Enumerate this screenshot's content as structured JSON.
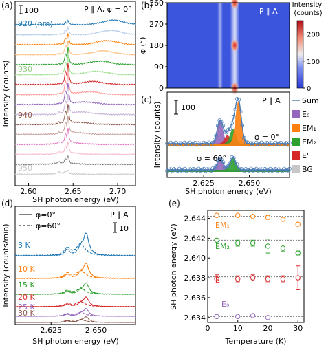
{
  "panel_labels": [
    "(a)",
    "(b)",
    "(c)",
    "(d)",
    "(e)"
  ],
  "chart_data": [
    {
      "panel": "a",
      "type": "line",
      "annotation": "P ∥ A, φ = 0°",
      "scale_bar": "100",
      "xlabel": "SH photon energy (eV)",
      "ylabel": "Intensity (counts)",
      "xlim": [
        2.585,
        2.72
      ],
      "xticks": [
        "2.60",
        "2.65",
        "2.70"
      ],
      "wavelength_unit_label": "920 (nm)",
      "wavelength_labels": [
        {
          "text": "920 (nm)",
          "color": "#1f77b4"
        },
        {
          "text": "930",
          "color": "#8fd07f"
        },
        {
          "text": "940",
          "color": "#8c564b"
        },
        {
          "text": "950",
          "color": "#c7c7c7"
        }
      ],
      "series": [
        {
          "color": "#1f77b4",
          "peak_x": 2.695
        },
        {
          "color": "#aec7e8",
          "peak_x": 2.692
        },
        {
          "color": "#ff7f0e",
          "peak_x": 2.688
        },
        {
          "color": "#ffbb78",
          "peak_x": 2.684
        },
        {
          "color": "#2ca02c",
          "peak_x": 2.68
        },
        {
          "color": "#98df8a",
          "peak_x": 2.676
        },
        {
          "color": "#d62728",
          "peak_x": 2.672
        },
        {
          "color": "#ff9896",
          "peak_x": 2.668
        },
        {
          "color": "#9467bd",
          "peak_x": 2.664
        },
        {
          "color": "#c5b0d5",
          "peak_x": 2.66
        },
        {
          "color": "#8c564b",
          "peak_x": 2.656
        },
        {
          "color": "#c49c94",
          "peak_x": 2.652
        },
        {
          "color": "#e377c2",
          "peak_x": 2.648
        },
        {
          "color": "#f7b6d2",
          "peak_x": 2.644
        },
        {
          "color": "#7f7f7f",
          "peak_x": 2.64
        },
        {
          "color": "#c7c7c7",
          "peak_x": 2.636
        }
      ]
    },
    {
      "panel": "b",
      "type": "heatmap",
      "annotation": "P ∥ A",
      "ylabel": "φ (°)",
      "ylim": [
        0,
        360
      ],
      "yticks": [
        "0",
        "90",
        "180",
        "270",
        "360"
      ],
      "colorbar_label": "Intensity (counts)",
      "colorbar_range": [
        0,
        250
      ],
      "colorbar_ticks": [
        "0",
        "100",
        "200"
      ],
      "bands": [
        {
          "x": 2.634,
          "strength": "weak"
        },
        {
          "x": 2.642,
          "strength": "strong"
        }
      ],
      "hot_spots": [
        {
          "x": 2.642,
          "phi": 0
        },
        {
          "x": 2.642,
          "phi": 180
        },
        {
          "x": 2.642,
          "phi": 360
        }
      ]
    },
    {
      "panel": "c",
      "type": "line",
      "annotation": "P ∥ A",
      "scale_bar": "100",
      "xlabel": "SH photon energy (eV)",
      "ylabel": "Intensity (counts)",
      "xlim": [
        2.605,
        2.672
      ],
      "xticks": [
        "2.625",
        "2.650"
      ],
      "curve_labels": [
        "φ = 0°",
        "φ = 60°"
      ],
      "legend": [
        {
          "name": "Sum",
          "color": "#4a7bb7"
        },
        {
          "name": "E₀",
          "color": "#9467bd"
        },
        {
          "name": "EM₁",
          "color": "#ff7f0e"
        },
        {
          "name": "EM₂",
          "color": "#2ca02c"
        },
        {
          "name": "E'",
          "color": "#d62728"
        },
        {
          "name": "BG",
          "color": "#c7c7c7"
        }
      ],
      "components_phi0": [
        {
          "name": "E₀",
          "center": 2.634,
          "height": 0.55
        },
        {
          "name": "E'",
          "center": 2.638,
          "height": 0.2
        },
        {
          "name": "EM₂",
          "center": 2.641,
          "height": 0.35
        },
        {
          "name": "EM₁",
          "center": 2.644,
          "height": 1.0
        }
      ],
      "components_phi60": [
        {
          "name": "E₀",
          "center": 2.634,
          "height": 0.55
        },
        {
          "name": "EM₂",
          "center": 2.641,
          "height": 0.6
        }
      ]
    },
    {
      "panel": "d",
      "type": "line",
      "annotation": "P ∥ A",
      "scale_bar": "10",
      "xlabel": "SH photon energy (eV)",
      "ylabel": "Intensity (counts/min)",
      "xlim": [
        2.605,
        2.672
      ],
      "xticks": [
        "2.625",
        "2.650"
      ],
      "legend": [
        {
          "name": "φ=0°",
          "style": "solid"
        },
        {
          "name": "φ=60°",
          "style": "dashed"
        }
      ],
      "series": [
        {
          "name": "3 K",
          "color": "#1f77b4"
        },
        {
          "name": "10 K",
          "color": "#ff7f0e"
        },
        {
          "name": "15 K",
          "color": "#2ca02c"
        },
        {
          "name": "20 K",
          "color": "#d62728"
        },
        {
          "name": "25 K",
          "color": "#9467bd"
        },
        {
          "name": "30 K",
          "color": "#8c564b"
        }
      ]
    },
    {
      "panel": "e",
      "type": "scatter",
      "xlabel": "Temperature (K)",
      "ylabel": "SH photon energy (eV)",
      "xlim": [
        0,
        32
      ],
      "ylim": [
        2.6335,
        2.6448
      ],
      "xticks": [
        0,
        10,
        20,
        30
      ],
      "yticks": [
        "2.634",
        "2.636",
        "2.638",
        "2.640",
        "2.642",
        "2.644"
      ],
      "series": [
        {
          "name": "EM₁",
          "color": "#ff7f0e",
          "reference": 2.6442,
          "points": [
            {
              "x": 3,
              "y": 2.6443,
              "err": 0.0001
            },
            {
              "x": 10,
              "y": 2.6443,
              "err": 0.0001
            },
            {
              "x": 15,
              "y": 2.6442,
              "err": 0.0001
            },
            {
              "x": 20,
              "y": 2.6441,
              "err": 0.0002
            },
            {
              "x": 25,
              "y": 2.6439,
              "err": 0.0001
            },
            {
              "x": 30,
              "y": 2.6434,
              "err": 0.0001
            }
          ]
        },
        {
          "name": "EM₂",
          "color": "#2ca02c",
          "reference": 2.6418,
          "points": [
            {
              "x": 3,
              "y": 2.6418,
              "err": 0.0001
            },
            {
              "x": 10,
              "y": 2.6415,
              "err": 0.0003
            },
            {
              "x": 15,
              "y": 2.6415,
              "err": 0.0003
            },
            {
              "x": 20,
              "y": 2.6412,
              "err": 0.0007
            },
            {
              "x": 25,
              "y": 2.641,
              "err": 0.0003
            },
            {
              "x": 30,
              "y": 2.6405,
              "err": 0.0002
            }
          ]
        },
        {
          "name": "E'",
          "color": "#d62728",
          "reference": 2.6381,
          "points": [
            {
              "x": 3,
              "y": 2.6379,
              "err": 0.0004
            },
            {
              "x": 10,
              "y": 2.6379,
              "err": 0.0003
            },
            {
              "x": 15,
              "y": 2.638,
              "err": 0.0003
            },
            {
              "x": 20,
              "y": 2.6379,
              "err": 0.0003
            },
            {
              "x": 25,
              "y": 2.6379,
              "err": 0.0003
            },
            {
              "x": 30,
              "y": 2.638,
              "err": 0.0012
            }
          ]
        },
        {
          "name": "E₀",
          "color": "#9467bd",
          "reference": 2.6341,
          "points": [
            {
              "x": 3,
              "y": 2.6341,
              "err": 0.0001
            },
            {
              "x": 10,
              "y": 2.6341,
              "err": 0.0001
            },
            {
              "x": 15,
              "y": 2.6342,
              "err": 0.0001
            },
            {
              "x": 20,
              "y": 2.634,
              "err": 0.0001
            }
          ]
        }
      ]
    }
  ]
}
